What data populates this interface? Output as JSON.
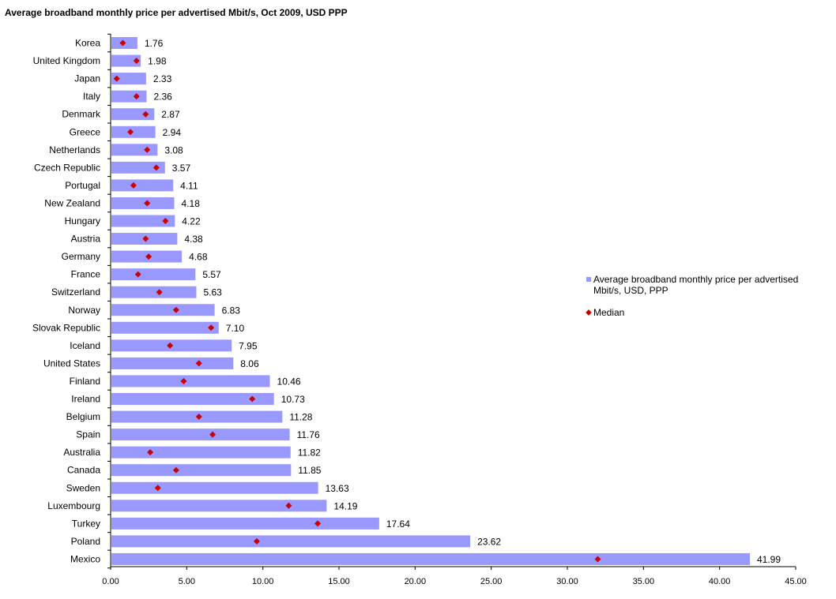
{
  "chart_data": {
    "type": "bar",
    "orientation": "horizontal",
    "title": "Average broadband  monthly  price per advertised  Mbit/s,  Oct 2009, USD PPP",
    "xlabel": "",
    "ylabel": "",
    "xlim": [
      0,
      45
    ],
    "xticks": [
      "0.00",
      "5.00",
      "10.00",
      "15.00",
      "20.00",
      "25.00",
      "30.00",
      "35.00",
      "40.00",
      "45.00"
    ],
    "categories": [
      "Korea",
      "United Kingdom",
      "Japan",
      "Italy",
      "Denmark",
      "Greece",
      "Netherlands",
      "Czech Republic",
      "Portugal",
      "New Zealand",
      "Hungary",
      "Austria",
      "Germany",
      "France",
      "Switzerland",
      "Norway",
      "Slovak Republic",
      "Iceland",
      "United States",
      "Finland",
      "Ireland",
      "Belgium",
      "Spain",
      "Australia",
      "Canada",
      "Sweden",
      "Luxembourg",
      "Turkey",
      "Poland",
      "Mexico"
    ],
    "series": [
      {
        "name": "Average broadband monthly price per advertised Mbit/s, USD, PPP",
        "kind": "bar",
        "color": "#9999ff",
        "values": [
          1.76,
          1.98,
          2.33,
          2.36,
          2.87,
          2.94,
          3.08,
          3.57,
          4.11,
          4.18,
          4.22,
          4.38,
          4.68,
          5.57,
          5.63,
          6.83,
          7.1,
          7.95,
          8.06,
          10.46,
          10.73,
          11.28,
          11.76,
          11.82,
          11.85,
          13.63,
          14.19,
          17.64,
          23.62,
          41.99
        ],
        "labels": [
          "1.76",
          "1.98",
          "2.33",
          "2.36",
          "2.87",
          "2.94",
          "3.08",
          "3.57",
          "4.11",
          "4.18",
          "4.22",
          "4.38",
          "4.68",
          "5.57",
          "5.63",
          "6.83",
          "7.10",
          "7.95",
          "8.06",
          "10.46",
          "10.73",
          "11.28",
          "11.76",
          "11.82",
          "11.85",
          "13.63",
          "14.19",
          "17.64",
          "23.62",
          "41.99"
        ]
      },
      {
        "name": "Median",
        "kind": "marker",
        "color": "#cc0000",
        "values": [
          0.8,
          1.7,
          0.4,
          1.7,
          2.3,
          1.3,
          2.4,
          3.0,
          1.5,
          2.4,
          3.6,
          2.3,
          2.5,
          1.8,
          3.2,
          4.3,
          6.6,
          3.9,
          5.8,
          4.8,
          9.3,
          5.8,
          6.7,
          2.6,
          4.3,
          3.1,
          11.7,
          13.6,
          9.6,
          32.0
        ]
      }
    ],
    "legend_position": "right"
  },
  "legend": {
    "bar_label": "Average broadband monthly price per advertised Mbit/s, USD, PPP",
    "median_label": "Median"
  }
}
